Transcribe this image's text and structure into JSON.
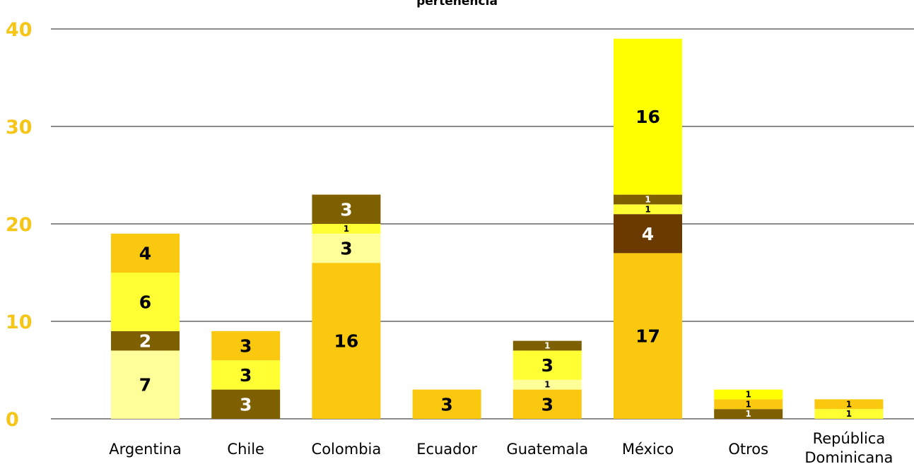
{
  "chart_data": {
    "type": "bar",
    "stacked": true,
    "title": "pertenencia",
    "xlabel": "",
    "ylabel": "",
    "ylim": [
      0,
      40
    ],
    "yticks": [
      "0",
      "10",
      "20",
      "30",
      "40"
    ],
    "grid": true,
    "categories": [
      "Argentina",
      "Chile",
      "Colombia",
      "Ecuador",
      "Guatemala",
      "México",
      "Otros",
      [
        "República",
        "Dominicana"
      ]
    ],
    "series": [
      {
        "color": "#FAC90F",
        "values": [
          0,
          0,
          16,
          3,
          3,
          17,
          0,
          0
        ]
      },
      {
        "color": "#FFFF99",
        "values": [
          7,
          0,
          3,
          0,
          1,
          0,
          0,
          0
        ]
      },
      {
        "color": "#6B3A00",
        "values": [
          0,
          0,
          0,
          0,
          0,
          4,
          0,
          0
        ]
      },
      {
        "color": "#7F6000",
        "values": [
          2,
          3,
          0,
          0,
          0,
          0,
          1,
          0
        ]
      },
      {
        "color": "#FFFF33",
        "values": [
          6,
          3,
          1,
          0,
          3,
          1,
          0,
          1
        ]
      },
      {
        "color": "#FAC90F",
        "values": [
          4,
          3,
          0,
          0,
          0,
          0,
          1,
          1
        ]
      },
      {
        "color": "#7F6000",
        "values": [
          0,
          0,
          3,
          0,
          1,
          1,
          0,
          0
        ]
      },
      {
        "color": "#FFFF00",
        "values": [
          0,
          0,
          0,
          0,
          0,
          16,
          1,
          0
        ]
      }
    ],
    "colors": {
      "axis_tick": "#F5C518",
      "gridline": "#8C8C8C",
      "label_dark": "#000000",
      "label_light": "#FFFFFF"
    }
  }
}
